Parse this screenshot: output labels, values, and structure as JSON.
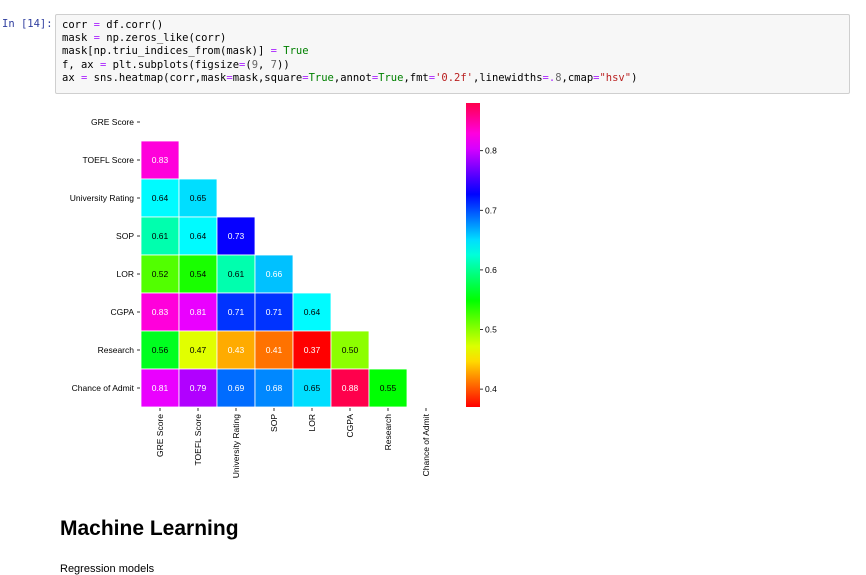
{
  "cell": {
    "prompt": "In [14]:",
    "code_lines": [
      [
        {
          "t": "corr "
        },
        {
          "t": "=",
          "c": "o"
        },
        {
          "t": " df.corr()"
        }
      ],
      [
        {
          "t": "mask "
        },
        {
          "t": "=",
          "c": "o"
        },
        {
          "t": " np.zeros_like(corr)"
        }
      ],
      [
        {
          "t": "mask[np.triu_indices_from(mask)] "
        },
        {
          "t": "=",
          "c": "o"
        },
        {
          "t": " "
        },
        {
          "t": "True",
          "c": "k"
        }
      ],
      [
        {
          "t": "f, ax "
        },
        {
          "t": "=",
          "c": "o"
        },
        {
          "t": " plt.subplots(figsize"
        },
        {
          "t": "=",
          "c": "o"
        },
        {
          "t": "("
        },
        {
          "t": "9",
          "c": "n"
        },
        {
          "t": ", "
        },
        {
          "t": "7",
          "c": "n"
        },
        {
          "t": "))"
        }
      ],
      [
        {
          "t": "ax "
        },
        {
          "t": "=",
          "c": "o"
        },
        {
          "t": " sns.heatmap(corr,mask"
        },
        {
          "t": "=",
          "c": "o"
        },
        {
          "t": "mask,square"
        },
        {
          "t": "=",
          "c": "o"
        },
        {
          "t": "True",
          "c": "k"
        },
        {
          "t": ",annot"
        },
        {
          "t": "=",
          "c": "o"
        },
        {
          "t": "True",
          "c": "k"
        },
        {
          "t": ",fmt"
        },
        {
          "t": "=",
          "c": "o"
        },
        {
          "t": "'0.2f'",
          "c": "s"
        },
        {
          "t": ",linewidths"
        },
        {
          "t": "=.",
          "c": "o"
        },
        {
          "t": "8",
          "c": "n"
        },
        {
          "t": ",cmap"
        },
        {
          "t": "=",
          "c": "o"
        },
        {
          "t": "\"hsv\"",
          "c": "s"
        },
        {
          "t": ")"
        }
      ]
    ]
  },
  "chart_data": {
    "type": "heatmap",
    "labels": [
      "GRE Score",
      "TOEFL Score",
      "University Rating",
      "SOP",
      "LOR",
      "CGPA",
      "Research",
      "Chance of Admit"
    ],
    "matrix": [
      [
        null,
        null,
        null,
        null,
        null,
        null,
        null,
        null
      ],
      [
        0.83,
        null,
        null,
        null,
        null,
        null,
        null,
        null
      ],
      [
        0.64,
        0.65,
        null,
        null,
        null,
        null,
        null,
        null
      ],
      [
        0.61,
        0.64,
        0.73,
        null,
        null,
        null,
        null,
        null
      ],
      [
        0.52,
        0.54,
        0.61,
        0.66,
        null,
        null,
        null,
        null
      ],
      [
        0.83,
        0.81,
        0.71,
        0.71,
        0.64,
        null,
        null,
        null
      ],
      [
        0.56,
        0.47,
        0.43,
        0.41,
        0.37,
        0.5,
        null,
        null
      ],
      [
        0.81,
        0.79,
        0.69,
        0.68,
        0.65,
        0.88,
        0.55,
        null
      ]
    ],
    "colormap": "hsv",
    "vmin": 0.37,
    "vmax": 0.88,
    "colorbar_ticks": [
      0.4,
      0.5,
      0.6,
      0.7,
      0.8
    ]
  },
  "markdown": {
    "heading": "Machine Learning",
    "text": "Regression models"
  }
}
